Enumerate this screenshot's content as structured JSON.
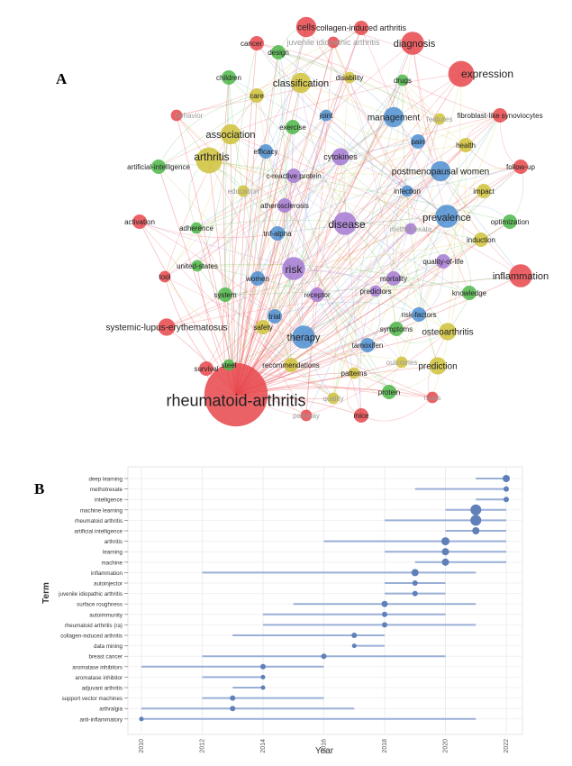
{
  "panels": {
    "a": "A",
    "b": "B"
  },
  "chart_data": [
    {
      "type": "network",
      "colors": {
        "red": "#e8464b",
        "green": "#4cb748",
        "blue": "#4e8fd2",
        "yellow": "#cfc23a",
        "purple": "#a57ad4"
      },
      "nodes": [
        {
          "label": "rheumatoid-arthritis",
          "cluster": "red",
          "size": 22
        },
        {
          "label": "arthritis",
          "cluster": "yellow",
          "size": 9
        },
        {
          "label": "expression",
          "cluster": "red",
          "size": 9
        },
        {
          "label": "diagnosis",
          "cluster": "red",
          "size": 8
        },
        {
          "label": "inflammation",
          "cluster": "red",
          "size": 8
        },
        {
          "label": "disease",
          "cluster": "purple",
          "size": 8
        },
        {
          "label": "therapy",
          "cluster": "blue",
          "size": 8
        },
        {
          "label": "risk",
          "cluster": "purple",
          "size": 8
        },
        {
          "label": "prevalence",
          "cluster": "blue",
          "size": 8
        },
        {
          "label": "classification",
          "cluster": "yellow",
          "size": 7
        },
        {
          "label": "association",
          "cluster": "yellow",
          "size": 7
        },
        {
          "label": "cells",
          "cluster": "red",
          "size": 7
        },
        {
          "label": "management",
          "cluster": "blue",
          "size": 7
        },
        {
          "label": "postmenopausal women",
          "cluster": "blue",
          "size": 7
        },
        {
          "label": "prediction",
          "cluster": "yellow",
          "size": 6
        },
        {
          "label": "osteoarthritis",
          "cluster": "yellow",
          "size": 6
        },
        {
          "label": "systemic-lupus-erythematosus",
          "cluster": "red",
          "size": 6
        },
        {
          "label": "cytokines",
          "cluster": "purple",
          "size": 6
        },
        {
          "label": "collagen-induced arthritis",
          "cluster": "red",
          "size": 5
        },
        {
          "label": "juvenile idiopathic arthritis",
          "cluster": "red",
          "size": 4
        },
        {
          "label": "cancer",
          "cluster": "red",
          "size": 5
        },
        {
          "label": "design",
          "cluster": "green",
          "size": 5
        },
        {
          "label": "children",
          "cluster": "green",
          "size": 5
        },
        {
          "label": "disability",
          "cluster": "yellow",
          "size": 4
        },
        {
          "label": "drugs",
          "cluster": "green",
          "size": 4
        },
        {
          "label": "care",
          "cluster": "yellow",
          "size": 5
        },
        {
          "label": "behavior",
          "cluster": "red",
          "size": 4
        },
        {
          "label": "joint",
          "cluster": "blue",
          "size": 4
        },
        {
          "label": "features",
          "cluster": "yellow",
          "size": 4
        },
        {
          "label": "fibroblast-like synoviocytes",
          "cluster": "red",
          "size": 5
        },
        {
          "label": "exercise",
          "cluster": "green",
          "size": 5
        },
        {
          "label": "pain",
          "cluster": "blue",
          "size": 5
        },
        {
          "label": "health",
          "cluster": "yellow",
          "size": 5
        },
        {
          "label": "efficacy",
          "cluster": "blue",
          "size": 5
        },
        {
          "label": "artificial-intelligence",
          "cluster": "green",
          "size": 5
        },
        {
          "label": "follow-up",
          "cluster": "red",
          "size": 5
        },
        {
          "label": "c-reactive protein",
          "cluster": "purple",
          "size": 5
        },
        {
          "label": "education",
          "cluster": "yellow",
          "size": 4
        },
        {
          "label": "infection",
          "cluster": "blue",
          "size": 4
        },
        {
          "label": "impact",
          "cluster": "yellow",
          "size": 5
        },
        {
          "label": "atherosclerosis",
          "cluster": "purple",
          "size": 5
        },
        {
          "label": "methotrexate",
          "cluster": "purple",
          "size": 4
        },
        {
          "label": "activation",
          "cluster": "red",
          "size": 5
        },
        {
          "label": "adherence",
          "cluster": "green",
          "size": 4
        },
        {
          "label": "tnf-alpha",
          "cluster": "blue",
          "size": 5
        },
        {
          "label": "optimization",
          "cluster": "green",
          "size": 5
        },
        {
          "label": "induction",
          "cluster": "yellow",
          "size": 5
        },
        {
          "label": "united-states",
          "cluster": "green",
          "size": 4
        },
        {
          "label": "quality-of-life",
          "cluster": "purple",
          "size": 5
        },
        {
          "label": "tool",
          "cluster": "red",
          "size": 4
        },
        {
          "label": "women",
          "cluster": "blue",
          "size": 5
        },
        {
          "label": "mortality",
          "cluster": "purple",
          "size": 5
        },
        {
          "label": "system",
          "cluster": "green",
          "size": 5
        },
        {
          "label": "receptor",
          "cluster": "purple",
          "size": 5
        },
        {
          "label": "predictors",
          "cluster": "purple",
          "size": 4
        },
        {
          "label": "knowledge",
          "cluster": "green",
          "size": 5
        },
        {
          "label": "trial",
          "cluster": "blue",
          "size": 5
        },
        {
          "label": "risk-factors",
          "cluster": "blue",
          "size": 5
        },
        {
          "label": "safety",
          "cluster": "yellow",
          "size": 5
        },
        {
          "label": "symptoms",
          "cluster": "green",
          "size": 5
        },
        {
          "label": "tamoxifen",
          "cluster": "blue",
          "size": 5
        },
        {
          "label": "survival",
          "cluster": "red",
          "size": 5
        },
        {
          "label": "steel",
          "cluster": "green",
          "size": 4
        },
        {
          "label": "recommendations",
          "cluster": "yellow",
          "size": 5
        },
        {
          "label": "outcomes",
          "cluster": "yellow",
          "size": 4
        },
        {
          "label": "patterns",
          "cluster": "yellow",
          "size": 4
        },
        {
          "label": "protein",
          "cluster": "green",
          "size": 5
        },
        {
          "label": "quality",
          "cluster": "yellow",
          "size": 4
        },
        {
          "label": "pathway",
          "cluster": "red",
          "size": 4
        },
        {
          "label": "mice",
          "cluster": "red",
          "size": 5
        },
        {
          "label": "mass",
          "cluster": "red",
          "size": 4
        }
      ]
    },
    {
      "type": "range-dot",
      "ylabel": "Term",
      "xlabel": "Year",
      "xlim": [
        2009.8,
        2022.5
      ],
      "xticks": [
        "2010",
        "2012",
        "2014",
        "2016",
        "2018",
        "2020",
        "2022"
      ],
      "colors": {
        "line": "#9aafd6",
        "dot": "#5f80b9"
      },
      "rows": [
        {
          "term": "deep learning",
          "start": 2021,
          "end": 2022,
          "peak": 2022,
          "size": 4
        },
        {
          "term": "methotrexate",
          "start": 2019,
          "end": 2022,
          "peak": 2022,
          "size": 3
        },
        {
          "term": "intelligence",
          "start": 2021,
          "end": 2022,
          "peak": 2022,
          "size": 3
        },
        {
          "term": "machine learning",
          "start": 2020,
          "end": 2022,
          "peak": 2021,
          "size": 6
        },
        {
          "term": "rheumatoid arthritis",
          "start": 2018,
          "end": 2022,
          "peak": 2021,
          "size": 6
        },
        {
          "term": "artificial intelligence",
          "start": 2020,
          "end": 2022,
          "peak": 2021,
          "size": 4
        },
        {
          "term": "arthritis",
          "start": 2016,
          "end": 2022,
          "peak": 2020,
          "size": 4.5
        },
        {
          "term": "learning",
          "start": 2018,
          "end": 2022,
          "peak": 2020,
          "size": 4
        },
        {
          "term": "machine",
          "start": 2019,
          "end": 2022,
          "peak": 2020,
          "size": 4
        },
        {
          "term": "inflammation",
          "start": 2012,
          "end": 2021,
          "peak": 2019,
          "size": 4
        },
        {
          "term": "autoinjector",
          "start": 2018,
          "end": 2020,
          "peak": 2019,
          "size": 3
        },
        {
          "term": "juvenile idiopathic arthritis",
          "start": 2018,
          "end": 2020,
          "peak": 2019,
          "size": 3
        },
        {
          "term": "surface roughness",
          "start": 2015,
          "end": 2021,
          "peak": 2018,
          "size": 3.5
        },
        {
          "term": "autoimmunity",
          "start": 2014,
          "end": 2020,
          "peak": 2018,
          "size": 3
        },
        {
          "term": "rheumatoid arthritis (ra)",
          "start": 2014,
          "end": 2021,
          "peak": 2018,
          "size": 3
        },
        {
          "term": "collagen-induced arthritis",
          "start": 2013,
          "end": 2018,
          "peak": 2017,
          "size": 3
        },
        {
          "term": "data mining",
          "start": 2017,
          "end": 2018,
          "peak": 2017,
          "size": 2.5
        },
        {
          "term": "breast cancer",
          "start": 2012,
          "end": 2020,
          "peak": 2016,
          "size": 3
        },
        {
          "term": "aromatase inhibitors",
          "start": 2010,
          "end": 2016,
          "peak": 2014,
          "size": 3
        },
        {
          "term": "aromatase inhibitor",
          "start": 2012,
          "end": 2014,
          "peak": 2014,
          "size": 2.5
        },
        {
          "term": "adjuvant arthritis",
          "start": 2013,
          "end": 2014,
          "peak": 2014,
          "size": 2.5
        },
        {
          "term": "support vector machines",
          "start": 2012,
          "end": 2016,
          "peak": 2013,
          "size": 3
        },
        {
          "term": "arthralgia",
          "start": 2010,
          "end": 2017,
          "peak": 2013,
          "size": 3
        },
        {
          "term": "anti-inflammatory",
          "start": 2010,
          "end": 2021,
          "peak": 2010,
          "size": 2.5
        }
      ]
    }
  ]
}
